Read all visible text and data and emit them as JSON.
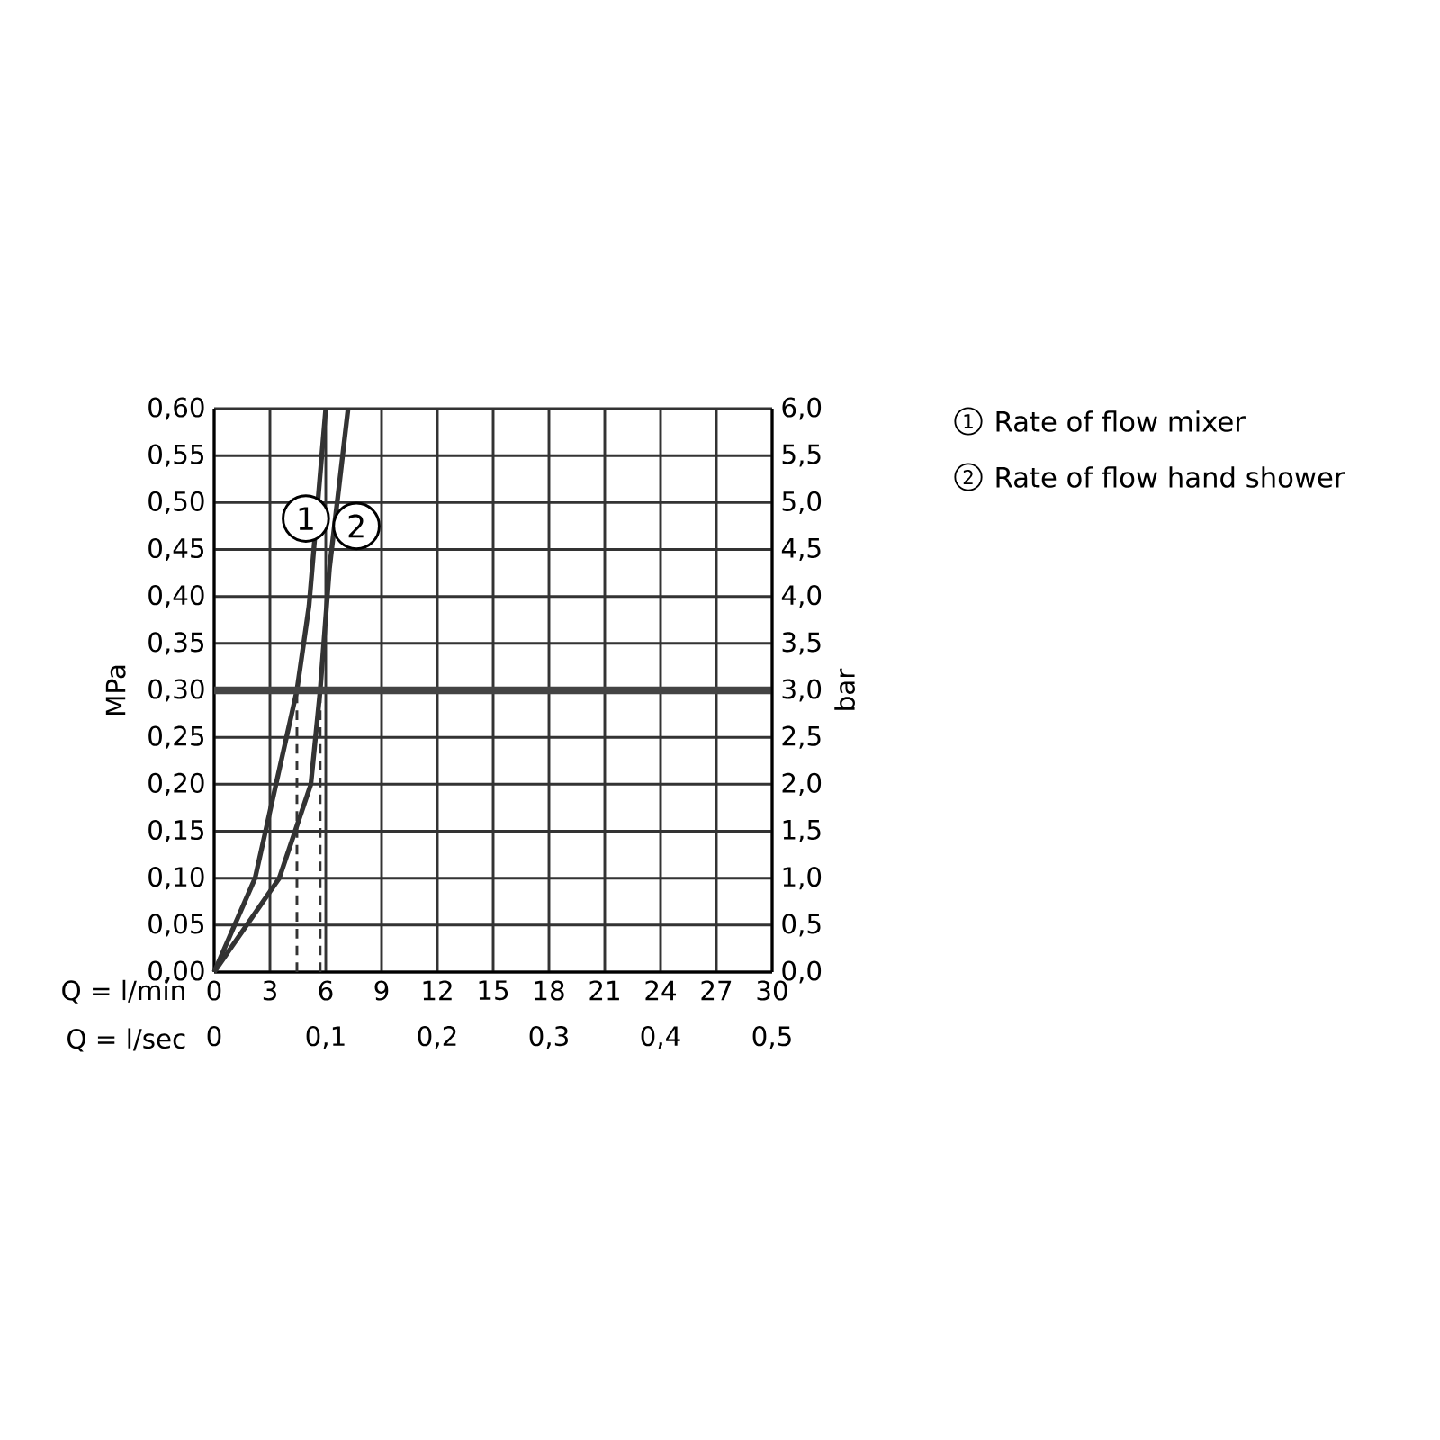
{
  "chart_data": {
    "type": "line",
    "xlabel": "Q = l/min",
    "ylabel": "MPa",
    "y2label": "bar",
    "x2label": "Q = l/sec",
    "xlim": [
      0,
      30
    ],
    "xticks": [
      0,
      3,
      6,
      9,
      12,
      15,
      18,
      21,
      24,
      27,
      30
    ],
    "ylim": [
      0,
      0.6
    ],
    "yticks": [
      {
        "value": 0,
        "label": "0,00"
      },
      {
        "value": 0.05,
        "label": "0,05"
      },
      {
        "value": 0.1,
        "label": "0,10"
      },
      {
        "value": 0.15,
        "label": "0,15"
      },
      {
        "value": 0.2,
        "label": "0,20"
      },
      {
        "value": 0.25,
        "label": "0,25"
      },
      {
        "value": 0.3,
        "label": "0,30"
      },
      {
        "value": 0.35,
        "label": "0,35"
      },
      {
        "value": 0.4,
        "label": "0,40"
      },
      {
        "value": 0.45,
        "label": "0,45"
      },
      {
        "value": 0.5,
        "label": "0,50"
      },
      {
        "value": 0.55,
        "label": "0,55"
      },
      {
        "value": 0.6,
        "label": "0,60"
      }
    ],
    "y2lim": [
      0,
      6
    ],
    "y2ticks": [
      {
        "value": 0,
        "label": "0,0"
      },
      {
        "value": 0.5,
        "label": "0,5"
      },
      {
        "value": 1,
        "label": "1,0"
      },
      {
        "value": 1.5,
        "label": "1,5"
      },
      {
        "value": 2,
        "label": "2,0"
      },
      {
        "value": 2.5,
        "label": "2,5"
      },
      {
        "value": 3,
        "label": "3,0"
      },
      {
        "value": 3.5,
        "label": "3,5"
      },
      {
        "value": 4,
        "label": "4,0"
      },
      {
        "value": 4.5,
        "label": "4,5"
      },
      {
        "value": 5,
        "label": "5,0"
      },
      {
        "value": 5.5,
        "label": "5,5"
      },
      {
        "value": 6,
        "label": "6,0"
      }
    ],
    "x2lim": [
      0,
      0.5
    ],
    "x2ticks": [
      0,
      {
        "value": 0.1,
        "label": "0,1"
      },
      {
        "value": 0.2,
        "label": "0,2"
      },
      {
        "value": 0.3,
        "label": "0,3"
      },
      {
        "value": 0.4,
        "label": "0,4"
      },
      {
        "value": 0.5,
        "label": "0,5"
      }
    ],
    "grid": true,
    "legend": "right",
    "line_style": "solid",
    "series": [
      {
        "name": "Rate of flow mixer",
        "color": "#333333",
        "x": [
          0,
          2.2,
          4.45,
          5.1,
          6.0
        ],
        "values": [
          0,
          0.1,
          0.3,
          0.39,
          0.6
        ]
      },
      {
        "name": "Rate of flow hand shower",
        "color": "#333333",
        "x": [
          0,
          3.5,
          5.2,
          5.7,
          6.2,
          7.2
        ],
        "values": [
          0,
          0.1,
          0.2,
          0.3,
          0.43,
          0.6
        ]
      },
      {
        "color": "#333333",
        "line_style": "dashed",
        "x": [
          4.45,
          4.45
        ],
        "values": [
          0,
          0.3
        ]
      },
      {
        "color": "#333333",
        "line_style": "dashed",
        "x": [
          5.7,
          5.7
        ],
        "values": [
          0,
          0.3
        ]
      }
    ],
    "ref_lines": [
      {
        "axis": "y",
        "value": 0.3,
        "color": "#444444"
      }
    ],
    "annotations": [
      {
        "text": "1",
        "x": 4.93,
        "y": 0.483
      },
      {
        "text": "2",
        "x": 7.65,
        "y": 0.475
      }
    ]
  }
}
